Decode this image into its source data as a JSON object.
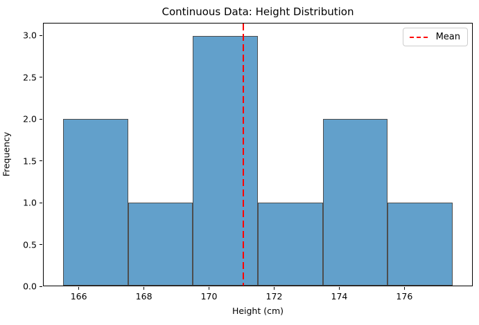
{
  "chart_data": {
    "type": "bar",
    "subtype": "histogram",
    "title": "Continuous Data: Height Distribution",
    "xlabel": "Height (cm)",
    "ylabel": "Frequency",
    "bin_edges": [
      165.5,
      167.5,
      169.5,
      171.5,
      173.5,
      175.5,
      177.5
    ],
    "frequencies": [
      2,
      1,
      3,
      1,
      2,
      1
    ],
    "mean_line_x": 171.05,
    "xlim": [
      164.9,
      178.1
    ],
    "ylim": [
      0,
      3.15
    ],
    "x_ticks": [
      166,
      168,
      170,
      172,
      174,
      176
    ],
    "x_tick_labels": [
      "166",
      "168",
      "170",
      "172",
      "174",
      "176"
    ],
    "y_ticks": [
      0,
      0.5,
      1,
      1.5,
      2,
      2.5,
      3
    ],
    "y_tick_labels": [
      "0.0",
      "0.5",
      "1.0",
      "1.5",
      "2.0",
      "2.5",
      "3.0"
    ],
    "grid": false,
    "legend": {
      "position": "upper right",
      "entries": [
        {
          "label": "Mean",
          "style": "dashed-line",
          "color": "#ff0000"
        }
      ]
    },
    "colors": {
      "bar_fill": "#62a0cb",
      "bar_edge": "#4d4d4d",
      "mean_line": "#ff0000",
      "axes": "#000000",
      "background": "#ffffff"
    }
  }
}
